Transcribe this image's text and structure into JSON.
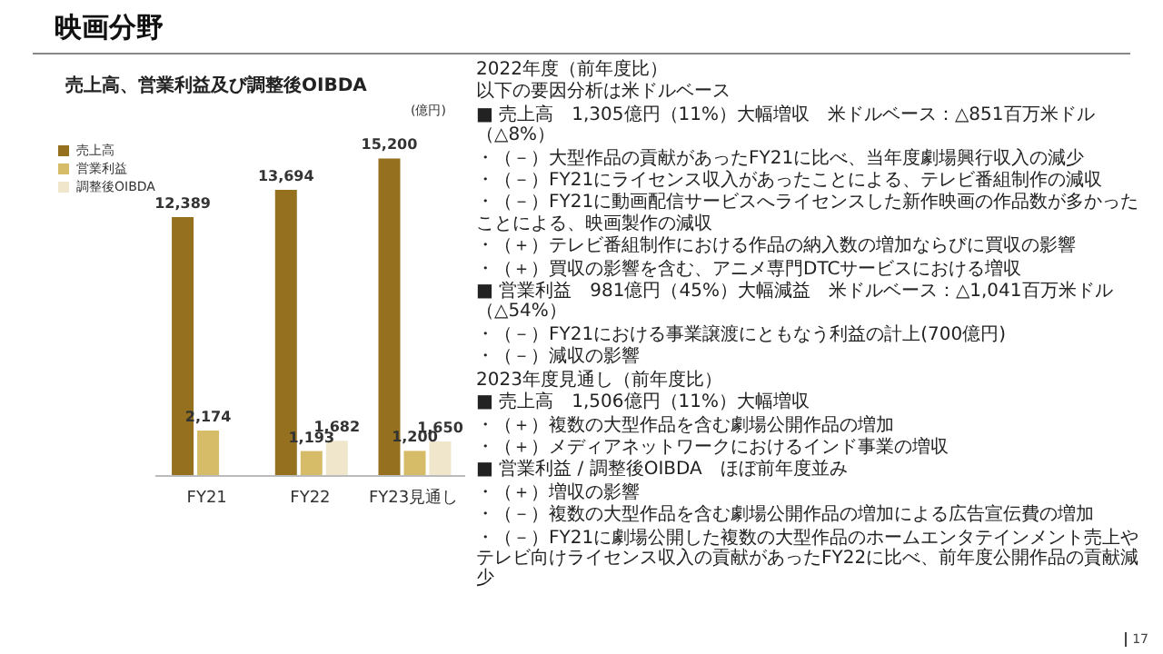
{
  "chart_data": {
    "type": "bar",
    "title": "映画分野",
    "subtitle": "売上高、営業利益及び調整後OIBDA",
    "ylabel": "(億円)",
    "categories": [
      "FY21",
      "FY22",
      "FY23見通し"
    ],
    "series": [
      {
        "name": "売上高",
        "color": "#94701f",
        "values": [
          12389,
          13694,
          15200
        ],
        "value_labels": [
          "12,389",
          "13,694",
          "15,200"
        ]
      },
      {
        "name": "営業利益",
        "color": "#d6bc68",
        "values": [
          2174,
          1193,
          1200
        ],
        "value_labels": [
          "2,174",
          "1,193",
          "1,200"
        ]
      },
      {
        "name": "調整後OIBDA",
        "color": "#efe6cc",
        "values": [
          null,
          1682,
          1650
        ],
        "value_labels": [
          null,
          "1,682",
          "1,650"
        ]
      }
    ],
    "legend": "top left",
    "grid": false,
    "annotations": [
      "2022年度（前年度比）",
      "以下の要因分析は米ドルベース",
      "■ 売上高　1,305億円（11%）大幅増収　米ドルベース：△851百万米ドル（△8%）",
      "・（－）大型作品の貢献があったFY21に比べ、当年度劇場興行収入の減少",
      "・（－）FY21にライセンス収入があったことによる、テレビ番組制作の減収",
      "・（－）FY21に動画配信サービスへライセンスした新作映画の作品数が多かったことによる、映画製作の減収",
      "・（＋）テレビ番組制作における作品の納入数の増加ならびに買収の影響",
      "・（＋）買収の影響を含む、アニメ専門DTCサービスにおける増収",
      "■ 営業利益　981億円（45%）大幅減益　米ドルベース：△1,041百万米ドル（△54%）",
      "・（－）FY21における事業譲渡にともなう利益の計上(700億円)",
      "・（－）減収の影響",
      "2023年度見通し（前年度比）",
      "■ 売上高　1,506億円（11%）大幅増収",
      "・（＋）複数の大型作品を含む劇場公開作品の増加",
      "・（＋）メディアネットワークにおけるインド事業の増収",
      "■ 営業利益 / 調整後OIBDA　ほぼ前年度並み",
      "・（＋）増収の影響",
      "・（－）複数の大型作品を含む劇場公開作品の増加による広告宣伝費の増加",
      "・（－）FY21に劇場公開した複数の大型作品のホームエンタテインメント売上やテレビ向けライセンス収入の貢献があったFY22に比べ、前年度公開作品の貢献減少",
      "17"
    ]
  }
}
